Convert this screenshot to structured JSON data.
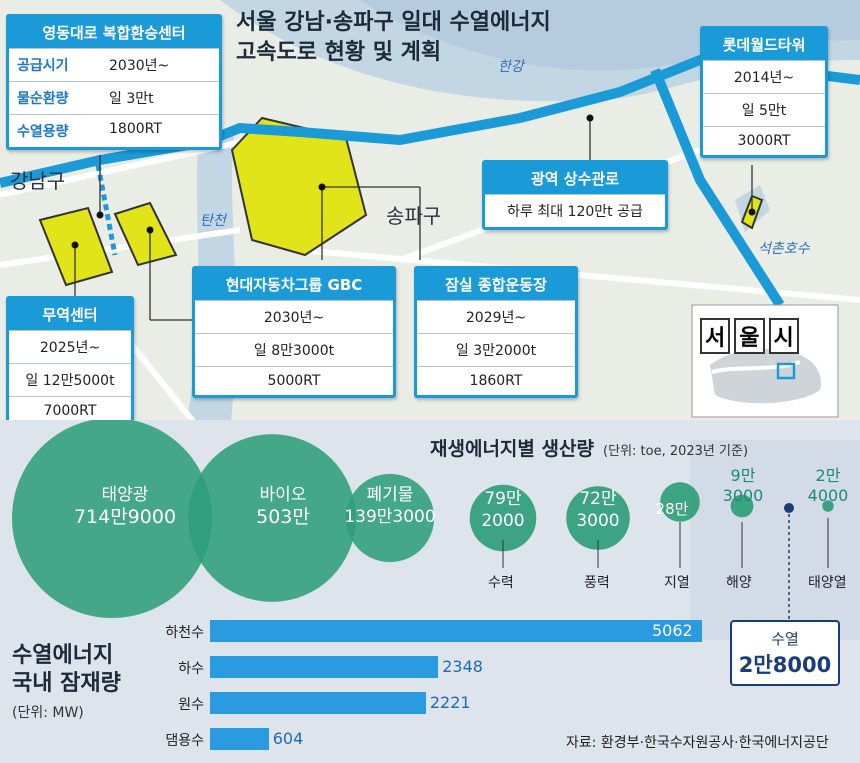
{
  "headline": {
    "line1": "서울 강남·송파구 일대 수열에너지",
    "line2": "고속도로 현황 및 계획"
  },
  "map": {
    "districts": [
      "강남구",
      "송파구"
    ],
    "water": [
      "한강",
      "탄천",
      "석촌호수"
    ],
    "inset_title": [
      "서",
      "울",
      "시"
    ],
    "colors": {
      "site": "#e2e41a",
      "pipe": "#1b9ad8",
      "river": "#bcd1df",
      "land": "#e7ece5"
    }
  },
  "cards": {
    "yeongdong": {
      "title": "영동대로 복합환승센터",
      "rows": [
        {
          "k": "공급시기",
          "v": "2030년~"
        },
        {
          "k": "물순환량",
          "v": "일 3만t"
        },
        {
          "k": "수열용량",
          "v": "1800RT"
        }
      ]
    },
    "lotte": {
      "title": "롯데월드타워",
      "rows": [
        "2014년~",
        "일 5만t",
        "3000RT"
      ]
    },
    "pipeline": {
      "title": "광역 상수관로",
      "rows": [
        "하루 최대 120만t 공급"
      ]
    },
    "gbc": {
      "title": "현대자동차그룹 GBC",
      "rows": [
        "2030년~",
        "일 8만3000t",
        "5000RT"
      ]
    },
    "jamsil": {
      "title": "잠실 종합운동장",
      "rows": [
        "2029년~",
        "일 3만2000t",
        "1860RT"
      ]
    },
    "trade": {
      "title": "무역센터",
      "rows": [
        "2025년~",
        "일 12만5000t",
        "7000RT"
      ]
    }
  },
  "renewable": {
    "title": "재생에너지별 생산량",
    "unit": "(단위: toe, 2023년 기준)",
    "items": [
      {
        "name": "태양광",
        "label": "714만9000",
        "value": 7149000
      },
      {
        "name": "바이오",
        "label": "503만",
        "value": 5030000
      },
      {
        "name": "폐기물",
        "label": "139만3000",
        "value": 1393000
      },
      {
        "name": "수력",
        "label": "79만\n2000",
        "value": 792000
      },
      {
        "name": "풍력",
        "label": "72만\n3000",
        "value": 723000
      },
      {
        "name": "지열",
        "label": "28만",
        "value": 280000
      },
      {
        "name": "해양",
        "label": "9만\n3000",
        "value": 93000
      },
      {
        "name": "태양열",
        "label": "2만\n4000",
        "value": 24000
      },
      {
        "name": "수열",
        "label": "2만8000",
        "value": 28000
      }
    ],
    "highlight": {
      "name": "수열",
      "value": "2만8000"
    }
  },
  "potential": {
    "title1": "수열에너지",
    "title2": "국내 잠재량",
    "unit": "(단위: MW)",
    "source": "자료: 환경부·한국수자원공사·한국에너지공단"
  },
  "chart_data": {
    "type": "bar",
    "orientation": "horizontal",
    "categories": [
      "하천수",
      "하수",
      "원수",
      "댐용수"
    ],
    "values": [
      5062,
      2348,
      2221,
      604
    ],
    "title": "수열에너지 국내 잠재량",
    "unit": "(단위: MW)"
  }
}
